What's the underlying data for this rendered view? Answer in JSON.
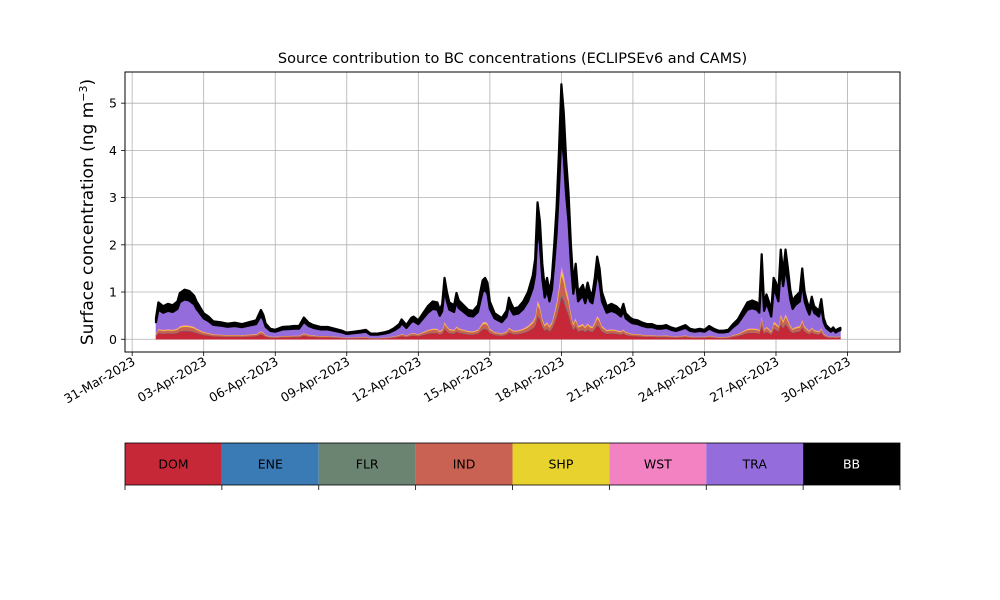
{
  "chart_data": {
    "type": "area",
    "stacked": true,
    "title": "Source contribution to BC concentrations (ECLIPSEv6 and CAMS)",
    "xlabel": "",
    "ylabel": "Surface concentration (ng m",
    "ylabel_sup": "−3",
    "ylabel_close": ")",
    "xlim": [
      -1.3,
      31.2
    ],
    "ylim": [
      -0.27,
      5.66
    ],
    "grid": true,
    "x_ticks": [
      {
        "day": -1,
        "label": "31-Mar-2023"
      },
      {
        "day": 2,
        "label": "03-Apr-2023"
      },
      {
        "day": 5,
        "label": "06-Apr-2023"
      },
      {
        "day": 8,
        "label": "09-Apr-2023"
      },
      {
        "day": 11,
        "label": "12-Apr-2023"
      },
      {
        "day": 14,
        "label": "15-Apr-2023"
      },
      {
        "day": 17,
        "label": "18-Apr-2023"
      },
      {
        "day": 20,
        "label": "21-Apr-2023"
      },
      {
        "day": 23,
        "label": "24-Apr-2023"
      },
      {
        "day": 26,
        "label": "27-Apr-2023"
      },
      {
        "day": 29,
        "label": "30-Apr-2023"
      }
    ],
    "y_ticks": [
      0,
      1,
      2,
      3,
      4,
      5
    ],
    "total_profile": [
      [
        0.0,
        0.45
      ],
      [
        0.1,
        0.78
      ],
      [
        0.3,
        0.7
      ],
      [
        0.5,
        0.75
      ],
      [
        0.7,
        0.72
      ],
      [
        0.9,
        0.8
      ],
      [
        1.0,
        0.98
      ],
      [
        1.2,
        1.05
      ],
      [
        1.4,
        1.02
      ],
      [
        1.6,
        0.92
      ],
      [
        1.7,
        0.8
      ],
      [
        1.8,
        0.72
      ],
      [
        2.0,
        0.55
      ],
      [
        2.2,
        0.48
      ],
      [
        2.4,
        0.38
      ],
      [
        2.7,
        0.36
      ],
      [
        3.0,
        0.33
      ],
      [
        3.3,
        0.35
      ],
      [
        3.6,
        0.32
      ],
      [
        3.9,
        0.36
      ],
      [
        4.2,
        0.4
      ],
      [
        4.4,
        0.62
      ],
      [
        4.5,
        0.52
      ],
      [
        4.6,
        0.33
      ],
      [
        4.8,
        0.22
      ],
      [
        5.0,
        0.2
      ],
      [
        5.3,
        0.26
      ],
      [
        5.6,
        0.27
      ],
      [
        5.8,
        0.28
      ],
      [
        6.0,
        0.28
      ],
      [
        6.2,
        0.46
      ],
      [
        6.4,
        0.35
      ],
      [
        6.6,
        0.3
      ],
      [
        6.9,
        0.26
      ],
      [
        7.2,
        0.26
      ],
      [
        7.5,
        0.22
      ],
      [
        7.8,
        0.18
      ],
      [
        8.0,
        0.14
      ],
      [
        8.3,
        0.16
      ],
      [
        8.6,
        0.18
      ],
      [
        8.8,
        0.2
      ],
      [
        9.0,
        0.12
      ],
      [
        9.3,
        0.12
      ],
      [
        9.6,
        0.15
      ],
      [
        9.8,
        0.18
      ],
      [
        10.0,
        0.24
      ],
      [
        10.2,
        0.32
      ],
      [
        10.3,
        0.42
      ],
      [
        10.5,
        0.3
      ],
      [
        10.7,
        0.45
      ],
      [
        10.8,
        0.48
      ],
      [
        11.0,
        0.4
      ],
      [
        11.2,
        0.55
      ],
      [
        11.4,
        0.7
      ],
      [
        11.6,
        0.8
      ],
      [
        11.8,
        0.78
      ],
      [
        11.9,
        0.62
      ],
      [
        12.0,
        0.74
      ],
      [
        12.1,
        1.3
      ],
      [
        12.2,
        1.0
      ],
      [
        12.3,
        0.78
      ],
      [
        12.5,
        0.72
      ],
      [
        12.6,
        0.98
      ],
      [
        12.7,
        0.82
      ],
      [
        12.9,
        0.72
      ],
      [
        13.1,
        0.62
      ],
      [
        13.3,
        0.6
      ],
      [
        13.5,
        0.72
      ],
      [
        13.6,
        1.0
      ],
      [
        13.7,
        1.25
      ],
      [
        13.8,
        1.3
      ],
      [
        13.9,
        1.2
      ],
      [
        14.0,
        0.8
      ],
      [
        14.2,
        0.55
      ],
      [
        14.5,
        0.45
      ],
      [
        14.7,
        0.6
      ],
      [
        14.8,
        0.88
      ],
      [
        14.9,
        0.75
      ],
      [
        15.0,
        0.65
      ],
      [
        15.2,
        0.68
      ],
      [
        15.4,
        0.8
      ],
      [
        15.6,
        1.0
      ],
      [
        15.8,
        1.35
      ],
      [
        15.9,
        1.7
      ],
      [
        16.0,
        2.9
      ],
      [
        16.1,
        2.5
      ],
      [
        16.2,
        1.6
      ],
      [
        16.3,
        1.1
      ],
      [
        16.4,
        1.3
      ],
      [
        16.5,
        1.0
      ],
      [
        16.6,
        1.3
      ],
      [
        16.7,
        2.0
      ],
      [
        16.8,
        2.8
      ],
      [
        16.9,
        4.0
      ],
      [
        17.0,
        5.4
      ],
      [
        17.1,
        4.8
      ],
      [
        17.2,
        3.8
      ],
      [
        17.3,
        3.1
      ],
      [
        17.4,
        2.0
      ],
      [
        17.5,
        1.2
      ],
      [
        17.6,
        1.6
      ],
      [
        17.7,
        1.0
      ],
      [
        17.9,
        1.15
      ],
      [
        18.0,
        0.95
      ],
      [
        18.1,
        1.2
      ],
      [
        18.2,
        1.0
      ],
      [
        18.3,
        0.95
      ],
      [
        18.4,
        1.3
      ],
      [
        18.5,
        1.75
      ],
      [
        18.6,
        1.5
      ],
      [
        18.7,
        1.0
      ],
      [
        18.9,
        0.7
      ],
      [
        19.1,
        0.75
      ],
      [
        19.3,
        0.7
      ],
      [
        19.5,
        0.6
      ],
      [
        19.6,
        0.75
      ],
      [
        19.7,
        0.55
      ],
      [
        19.9,
        0.45
      ],
      [
        20.0,
        0.42
      ],
      [
        20.2,
        0.4
      ],
      [
        20.4,
        0.35
      ],
      [
        20.6,
        0.32
      ],
      [
        20.8,
        0.32
      ],
      [
        21.0,
        0.28
      ],
      [
        21.2,
        0.28
      ],
      [
        21.4,
        0.3
      ],
      [
        21.6,
        0.25
      ],
      [
        21.8,
        0.22
      ],
      [
        22.0,
        0.26
      ],
      [
        22.2,
        0.3
      ],
      [
        22.4,
        0.22
      ],
      [
        22.6,
        0.2
      ],
      [
        22.8,
        0.22
      ],
      [
        23.0,
        0.2
      ],
      [
        23.2,
        0.28
      ],
      [
        23.4,
        0.22
      ],
      [
        23.6,
        0.18
      ],
      [
        23.8,
        0.18
      ],
      [
        24.0,
        0.2
      ],
      [
        24.2,
        0.32
      ],
      [
        24.4,
        0.42
      ],
      [
        24.6,
        0.6
      ],
      [
        24.8,
        0.78
      ],
      [
        25.0,
        0.82
      ],
      [
        25.2,
        0.78
      ],
      [
        25.3,
        0.7
      ],
      [
        25.4,
        1.8
      ],
      [
        25.5,
        0.75
      ],
      [
        25.6,
        0.95
      ],
      [
        25.7,
        0.8
      ],
      [
        25.8,
        0.6
      ],
      [
        25.9,
        1.3
      ],
      [
        26.0,
        1.2
      ],
      [
        26.1,
        1.0
      ],
      [
        26.2,
        1.9
      ],
      [
        26.3,
        1.4
      ],
      [
        26.4,
        1.9
      ],
      [
        26.5,
        1.5
      ],
      [
        26.6,
        1.05
      ],
      [
        26.7,
        0.8
      ],
      [
        26.8,
        0.9
      ],
      [
        27.0,
        1.0
      ],
      [
        27.1,
        1.5
      ],
      [
        27.2,
        1.0
      ],
      [
        27.3,
        0.8
      ],
      [
        27.4,
        0.65
      ],
      [
        27.5,
        0.9
      ],
      [
        27.6,
        0.7
      ],
      [
        27.8,
        0.6
      ],
      [
        27.9,
        0.85
      ],
      [
        28.0,
        0.45
      ],
      [
        28.1,
        0.3
      ],
      [
        28.2,
        0.25
      ],
      [
        28.3,
        0.2
      ],
      [
        28.4,
        0.25
      ],
      [
        28.5,
        0.18
      ],
      [
        28.6,
        0.22
      ],
      [
        28.7,
        0.24
      ]
    ],
    "series": [
      {
        "name": "DOM",
        "color": "#c62838",
        "fraction": 0.17
      },
      {
        "name": "ENE",
        "color": "#3a7ab5",
        "fraction": 0.004
      },
      {
        "name": "FLR",
        "color": "#6b8472",
        "fraction": 0.006
      },
      {
        "name": "IND",
        "color": "#c96252",
        "fraction": 0.075
      },
      {
        "name": "SHP",
        "color": "#e8d22e",
        "fraction": 0.02
      },
      {
        "name": "WST",
        "color": "#f382c2",
        "fraction": 0.018
      },
      {
        "name": "TRA",
        "color": "#946cdc",
        "fraction": 0.51
      },
      {
        "name": "BB",
        "color": "#000000",
        "fraction": 0.197
      }
    ],
    "legend_text_colors": [
      "#000000",
      "#000000",
      "#000000",
      "#000000",
      "#000000",
      "#000000",
      "#000000",
      "#ffffff"
    ],
    "legend_placement": "bottom",
    "axis_color": "#000000",
    "grid_color": "#b0b0b0"
  }
}
